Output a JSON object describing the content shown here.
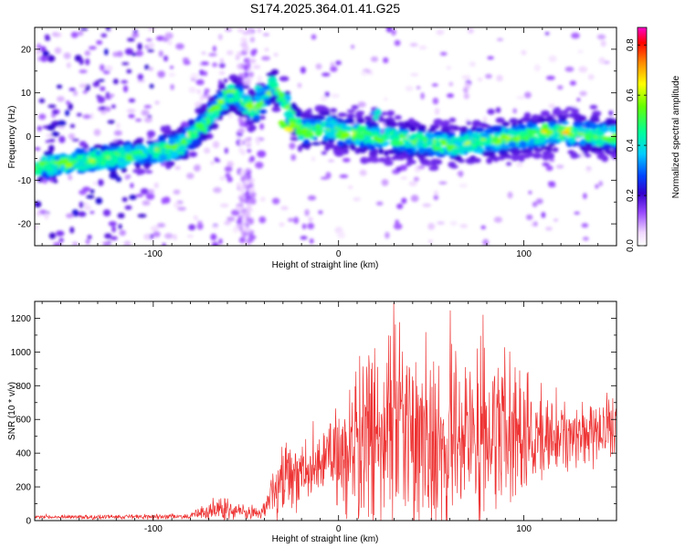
{
  "title": "S174.2025.364.01.41.G25",
  "chart_data": [
    {
      "type": "heatmap",
      "xlabel": "Height of straight line (km)",
      "ylabel": "Frequency (Hz)",
      "xlim": [
        -164,
        150
      ],
      "ylim": [
        -25,
        25
      ],
      "xticks": [
        -100,
        0,
        100
      ],
      "yticks": [
        -20,
        -10,
        0,
        10,
        20
      ],
      "colorbar": {
        "label": "Normalized spectral amplitude",
        "range": [
          0.0,
          0.87
        ],
        "ticks": [
          0.0,
          0.2,
          0.4,
          0.6,
          0.8
        ]
      },
      "features": [
        {
          "name": "main-trace",
          "points": [
            [
              -164,
              -7
            ],
            [
              -105,
              -4
            ],
            [
              -85,
              -2
            ],
            [
              -75,
              2
            ],
            [
              -65,
              7
            ],
            [
              -58,
              10
            ],
            [
              -45,
              6
            ],
            [
              -35,
              12
            ],
            [
              -20,
              1
            ],
            [
              -5,
              2
            ],
            [
              0,
              1
            ],
            [
              20,
              0
            ],
            [
              40,
              -1
            ],
            [
              60,
              -2
            ],
            [
              80,
              -1
            ],
            [
              100,
              0
            ],
            [
              120,
              1
            ],
            [
              150,
              0
            ]
          ]
        }
      ]
    },
    {
      "type": "line",
      "color": "#ee3333",
      "xlabel": "Height of straight line (km)",
      "ylabel": "SNR (10 * v/v)",
      "xlim": [
        -164,
        150
      ],
      "ylim": [
        0,
        1300
      ],
      "xticks": [
        -100,
        0,
        100
      ],
      "yticks": [
        0,
        200,
        400,
        600,
        800,
        1000,
        1200
      ],
      "envelope": [
        {
          "x": -164,
          "base": 20,
          "amp": 15
        },
        {
          "x": -80,
          "base": 25,
          "amp": 20
        },
        {
          "x": -65,
          "base": 80,
          "amp": 120
        },
        {
          "x": -55,
          "base": 60,
          "amp": 70
        },
        {
          "x": -42,
          "base": 40,
          "amp": 40
        },
        {
          "x": -35,
          "base": 160,
          "amp": 200
        },
        {
          "x": -28,
          "base": 280,
          "amp": 350
        },
        {
          "x": -10,
          "base": 330,
          "amp": 200
        },
        {
          "x": 2,
          "base": 420,
          "amp": 420
        },
        {
          "x": 20,
          "base": 480,
          "amp": 800
        },
        {
          "x": 70,
          "base": 500,
          "amp": 760
        },
        {
          "x": 110,
          "base": 520,
          "amp": 320
        },
        {
          "x": 150,
          "base": 550,
          "amp": 220
        }
      ]
    }
  ]
}
